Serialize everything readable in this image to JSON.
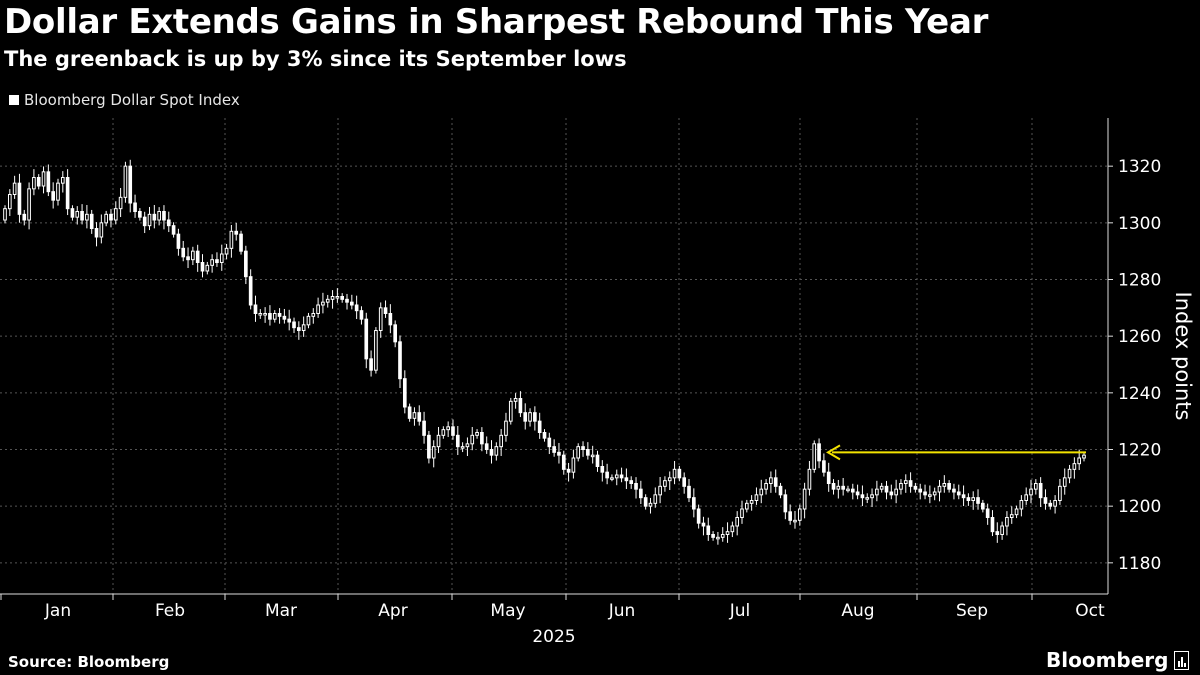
{
  "chart_data": {
    "type": "candlestick",
    "title": "Dollar Extends Gains in Sharpest Rebound This Year",
    "subtitle": "The greenback is up by 3% since its September lows",
    "legend": [
      "Bloomberg Dollar Spot Index"
    ],
    "ylabel": "Index points",
    "xlabel": "2025",
    "ylim": [
      1169,
      1337
    ],
    "yticks": [
      1180,
      1200,
      1220,
      1240,
      1260,
      1280,
      1300,
      1320
    ],
    "months": [
      "Jan",
      "Feb",
      "Mar",
      "Apr",
      "May",
      "Jun",
      "Jul",
      "Aug",
      "Sep",
      "Oct"
    ],
    "year_label": "2025",
    "closes": [
      1305,
      1310,
      1314,
      1303,
      1301,
      1312,
      1316,
      1313,
      1318,
      1311,
      1308,
      1314,
      1316,
      1305,
      1302,
      1304,
      1301,
      1303,
      1298,
      1295,
      1300,
      1303,
      1301,
      1305,
      1309,
      1320,
      1307,
      1304,
      1302,
      1299,
      1303,
      1301,
      1304,
      1301,
      1299,
      1296,
      1291,
      1288,
      1287,
      1290,
      1286,
      1283,
      1285,
      1287,
      1286,
      1289,
      1291,
      1297,
      1296,
      1290,
      1281,
      1271,
      1268,
      1268,
      1268,
      1266,
      1268,
      1267,
      1266,
      1265,
      1263,
      1262,
      1264,
      1267,
      1268,
      1271,
      1272,
      1273,
      1274,
      1274,
      1273,
      1272,
      1271,
      1269,
      1266,
      1252,
      1248,
      1262,
      1270,
      1268,
      1264,
      1258,
      1245,
      1235,
      1231,
      1233,
      1230,
      1225,
      1217,
      1221,
      1225,
      1227,
      1228,
      1225,
      1221,
      1221,
      1222,
      1225,
      1226,
      1222,
      1220,
      1218,
      1221,
      1225,
      1230,
      1237,
      1238,
      1233,
      1230,
      1233,
      1230,
      1226,
      1224,
      1221,
      1219,
      1218,
      1213,
      1212,
      1217,
      1221,
      1220,
      1218,
      1218,
      1214,
      1212,
      1210,
      1210,
      1211,
      1210,
      1209,
      1208,
      1206,
      1203,
      1200,
      1201,
      1204,
      1207,
      1209,
      1210,
      1213,
      1210,
      1207,
      1203,
      1199,
      1194,
      1193,
      1190,
      1189,
      1189,
      1190,
      1191,
      1193,
      1196,
      1199,
      1201,
      1202,
      1204,
      1206,
      1208,
      1210,
      1207,
      1204,
      1198,
      1195,
      1195,
      1199,
      1206,
      1213,
      1222,
      1216,
      1212,
      1208,
      1206,
      1207,
      1206,
      1206,
      1205,
      1204,
      1203,
      1203,
      1204,
      1206,
      1207,
      1205,
      1204,
      1206,
      1208,
      1209,
      1207,
      1206,
      1205,
      1204,
      1204,
      1205,
      1207,
      1208,
      1206,
      1205,
      1204,
      1203,
      1202,
      1203,
      1201,
      1199,
      1196,
      1191,
      1190,
      1193,
      1196,
      1197,
      1199,
      1202,
      1204,
      1206,
      1208,
      1203,
      1201,
      1200,
      1202,
      1207,
      1210,
      1213,
      1215,
      1217,
      1218
    ],
    "annotation": {
      "type": "arrow",
      "from_value": 1219,
      "to_value": 1219,
      "note": "yellow arrow at August high level"
    }
  },
  "footer": {
    "source": "Source: Bloomberg",
    "brand": "Bloomberg"
  },
  "colors": {
    "background": "#000000",
    "candle": "#ffffff",
    "grid": "#555555",
    "arrow": "#f2e200"
  }
}
